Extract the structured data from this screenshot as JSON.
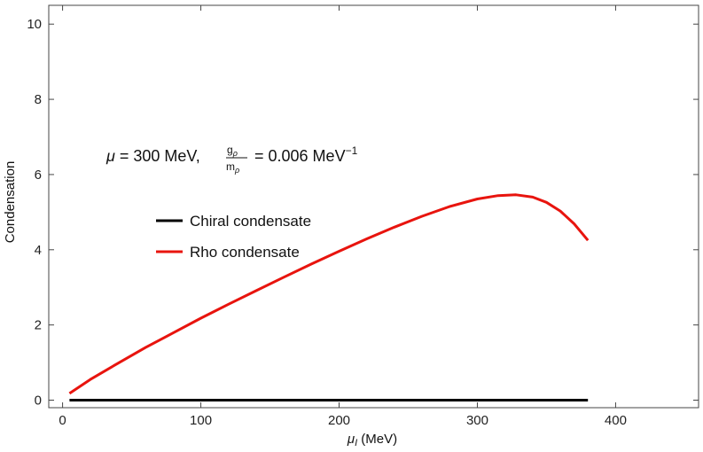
{
  "chart_data": {
    "type": "line",
    "xlabel_symbol": "μ",
    "xlabel_subscript": "I",
    "xlabel_unit": " (MeV)",
    "ylabel": "Condensation",
    "xlim": [
      -10,
      460
    ],
    "ylim": [
      -0.2,
      10.5
    ],
    "xticks": [
      0,
      100,
      200,
      300,
      400
    ],
    "yticks": [
      0,
      2,
      4,
      6,
      8,
      10
    ],
    "grid": false,
    "legend_position": "center-left",
    "annotation": {
      "mu_symbol": "μ",
      "prefix": " = 300 MeV, ",
      "frac_num": "g",
      "frac_num_sub": "ρ",
      "frac_den": "m",
      "frac_den_sub": "ρ",
      "suffix": " = 0.006 MeV",
      "suffix_sup": "−1"
    },
    "series": [
      {
        "name": "Chiral condensate",
        "color": "#000000",
        "x": [
          5,
          380
        ],
        "y": [
          0,
          0
        ]
      },
      {
        "name": "Rho condensate",
        "color": "#e8140e",
        "x": [
          5,
          20,
          40,
          60,
          80,
          100,
          120,
          140,
          160,
          180,
          200,
          220,
          240,
          260,
          280,
          300,
          315,
          328,
          340,
          350,
          360,
          370,
          380
        ],
        "y": [
          0.18,
          0.55,
          0.98,
          1.4,
          1.79,
          2.18,
          2.55,
          2.91,
          3.27,
          3.62,
          3.96,
          4.29,
          4.6,
          4.89,
          5.15,
          5.35,
          5.44,
          5.46,
          5.4,
          5.26,
          5.03,
          4.69,
          4.25
        ]
      }
    ]
  }
}
